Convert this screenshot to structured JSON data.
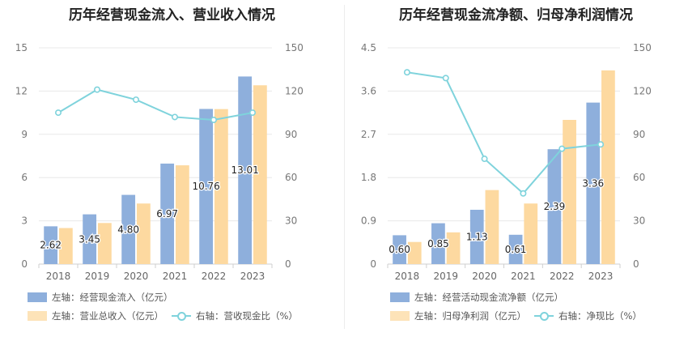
{
  "chart_data": [
    {
      "type": "bar",
      "title": "历年经营现金流入、营业收入情况",
      "categories": [
        "2018",
        "2019",
        "2020",
        "2021",
        "2022",
        "2023"
      ],
      "y_left": {
        "ticks": [
          "0",
          "3",
          "6",
          "9",
          "12",
          "15"
        ],
        "range": [
          0,
          15
        ]
      },
      "y_right": {
        "ticks": [
          "0",
          "30",
          "60",
          "90",
          "120",
          "150"
        ],
        "range": [
          0,
          150
        ]
      },
      "series": [
        {
          "name": "左轴：经营现金流入（亿元）",
          "kind": "bar",
          "axis": "left",
          "color": "#8eafdc",
          "values": [
            2.62,
            3.45,
            4.8,
            6.97,
            10.76,
            13.01
          ],
          "labels": [
            "2.62",
            "3.45",
            "4.80",
            "6.97",
            "10.76",
            "13.01"
          ]
        },
        {
          "name": "左轴：营业总收入（亿元）",
          "kind": "bar",
          "axis": "left",
          "color": "#fdd9a0",
          "values": [
            2.5,
            2.85,
            4.2,
            6.85,
            10.75,
            12.4
          ]
        },
        {
          "name": "右轴：营收现金比（%）",
          "kind": "line",
          "axis": "right",
          "color": "#7fd3dc",
          "values": [
            105,
            121,
            114,
            102,
            100,
            105
          ]
        }
      ]
    },
    {
      "type": "bar",
      "title": "历年经营现金流净额、归母净利润情况",
      "categories": [
        "2018",
        "2019",
        "2020",
        "2021",
        "2022",
        "2023"
      ],
      "y_left": {
        "ticks": [
          "0",
          "0.9",
          "1.8",
          "2.7",
          "3.6",
          "4.5"
        ],
        "range": [
          0,
          4.5
        ]
      },
      "y_right": {
        "ticks": [
          "0",
          "30",
          "60",
          "90",
          "120",
          "150"
        ],
        "range": [
          0,
          150
        ]
      },
      "series": [
        {
          "name": "左轴：经营活动现金流净额（亿元）",
          "kind": "bar",
          "axis": "left",
          "color": "#8eafdc",
          "values": [
            0.6,
            0.85,
            1.13,
            0.61,
            2.39,
            3.36
          ],
          "labels": [
            "0.60",
            "0.85",
            "1.13",
            "0.61",
            "2.39",
            "3.36"
          ]
        },
        {
          "name": "左轴：归母净利润（亿元）",
          "kind": "bar",
          "axis": "left",
          "color": "#fdd9a0",
          "values": [
            0.46,
            0.66,
            1.54,
            1.26,
            3.0,
            4.03
          ]
        },
        {
          "name": "右轴：净现比（%）",
          "kind": "line",
          "axis": "right",
          "color": "#7fd3dc",
          "values": [
            133,
            129,
            73,
            49,
            80,
            83
          ]
        }
      ]
    }
  ]
}
